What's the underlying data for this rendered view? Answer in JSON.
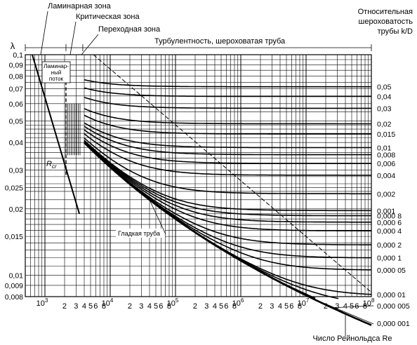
{
  "chart_data": {
    "type": "line",
    "title": "",
    "xlabel": "Число  Рейнольдса Re",
    "ylabel": "λ",
    "x_scale": "log",
    "y_scale": "log",
    "xlim": [
      500,
      100000000
    ],
    "ylim": [
      0.008,
      0.1
    ],
    "grid": true,
    "zones": [
      "Ламинарная зона",
      "Критическая зона",
      "Переходная зона",
      "Турбулентность, шероховатая труба"
    ],
    "laminar_flow_label_line1": "Ламинар-",
    "laminar_flow_label_line2": "ный",
    "laminar_flow_label_line3": "поток",
    "rcr_label": "R",
    "rcr_sub": "cr",
    "smooth_pipe_label": "Гладкая труба",
    "roughness_axis_title_line1": "Относительная",
    "roughness_axis_title_line2": "шероховатость",
    "roughness_axis_title_line3": "трубы k/D",
    "y_ticks": [
      {
        "v": 0.1,
        "t": "0,1"
      },
      {
        "v": 0.09,
        "t": "0,09"
      },
      {
        "v": 0.08,
        "t": "0,08"
      },
      {
        "v": 0.07,
        "t": "0,07"
      },
      {
        "v": 0.06,
        "t": "0,06"
      },
      {
        "v": 0.05,
        "t": "0,05"
      },
      {
        "v": 0.04,
        "t": "0,04"
      },
      {
        "v": 0.03,
        "t": "0,03"
      },
      {
        "v": 0.025,
        "t": "0,025"
      },
      {
        "v": 0.02,
        "t": "0,02"
      },
      {
        "v": 0.015,
        "t": "0,015"
      },
      {
        "v": 0.01,
        "t": "0,01"
      },
      {
        "v": 0.009,
        "t": "0,009"
      },
      {
        "v": 0.008,
        "t": "0,008"
      }
    ],
    "x_decade_labels": [
      {
        "exp": 3,
        "base": "10",
        "sup": "3"
      },
      {
        "exp": 4,
        "base": "10",
        "sup": "4"
      },
      {
        "exp": 5,
        "base": "10",
        "sup": "5"
      },
      {
        "exp": 6,
        "base": "10",
        "sup": "6"
      },
      {
        "exp": 7,
        "base": "10",
        "sup": "7"
      },
      {
        "exp": 8,
        "base": "10",
        "sup": "8"
      }
    ],
    "x_minor_labels": [
      "2",
      "3",
      "4",
      "5",
      "6",
      "8"
    ],
    "series": [
      {
        "rr": 0.05,
        "t": "0,05"
      },
      {
        "rr": 0.04,
        "t": "0,04"
      },
      {
        "rr": 0.03,
        "t": "0,03"
      },
      {
        "rr": 0.02,
        "t": "0,02"
      },
      {
        "rr": 0.015,
        "t": "0,015"
      },
      {
        "rr": 0.01,
        "t": "0,01"
      },
      {
        "rr": 0.008,
        "t": "0,008"
      },
      {
        "rr": 0.006,
        "t": "0,006"
      },
      {
        "rr": 0.004,
        "t": "0,004"
      },
      {
        "rr": 0.002,
        "t": "0,002"
      },
      {
        "rr": 0.001,
        "t": "0,001"
      },
      {
        "rr": 0.0008,
        "t": "0,000 8"
      },
      {
        "rr": 0.0006,
        "t": "0,000 6"
      },
      {
        "rr": 0.0004,
        "t": "0,000 4"
      },
      {
        "rr": 0.0002,
        "t": "0,000 2"
      },
      {
        "rr": 0.0001,
        "t": "0,000 1"
      },
      {
        "rr": 5e-05,
        "t": "0,000 05"
      },
      {
        "rr": 1e-05,
        "t": "0,000 01"
      },
      {
        "rr": 5e-06,
        "t": "0,000 005"
      },
      {
        "rr": 1e-06,
        "t": "0,000 001"
      }
    ]
  }
}
